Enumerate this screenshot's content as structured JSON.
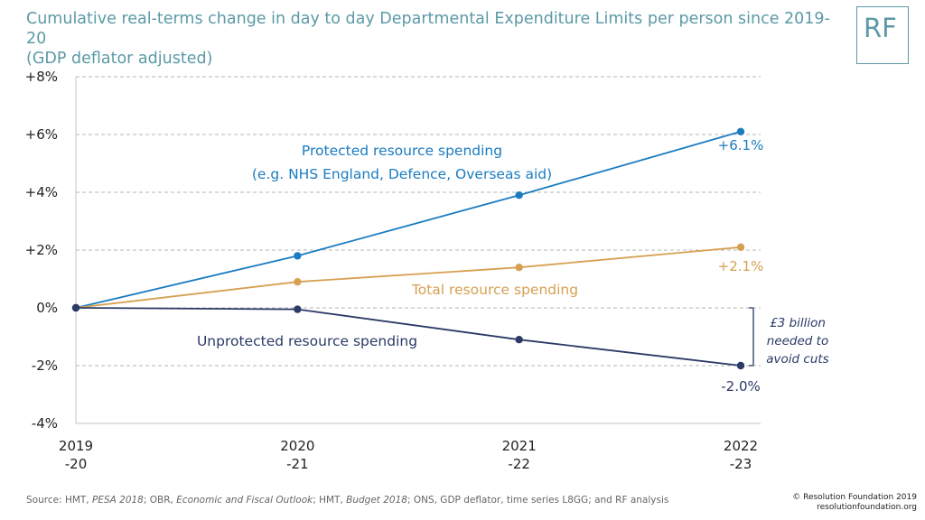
{
  "header": {
    "title_line1": "Cumulative real-terms change in day to day Departmental Expenditure Limits per person since 2019-20",
    "title_line2": "(GDP deflator adjusted)",
    "logo_text": "RF"
  },
  "footer": {
    "source_prefix": "Source: HMT, ",
    "source_pesa": "PESA 2018",
    "source_mid1": "; OBR, ",
    "source_efo": "Economic and Fiscal Outlook",
    "source_mid2": "; HMT, ",
    "source_budget": "Budget 2018",
    "source_suffix": "; ONS, GDP deflator, time series L8GG; and RF analysis",
    "copyright_line1": "© Resolution Foundation 2019",
    "copyright_line2": "resolutionfoundation.org"
  },
  "chart_data": {
    "type": "line",
    "x_tick_labels": [
      [
        "2019",
        "-20"
      ],
      [
        "2020",
        "-21"
      ],
      [
        "2021",
        "-22"
      ],
      [
        "2022",
        "-23"
      ]
    ],
    "y_tick_labels": [
      "+8%",
      "+6%",
      "+4%",
      "+2%",
      "0%",
      "-2%",
      "-4%"
    ],
    "ylim": [
      -4,
      8
    ],
    "y_ticks": [
      8,
      6,
      4,
      2,
      0,
      -2,
      -4
    ],
    "grid": true,
    "series": [
      {
        "label_lines": [
          "Protected resource spending",
          "(e.g. NHS England, Defence, Overseas aid)"
        ],
        "color": "#1b7cc1",
        "values": [
          0,
          1.8,
          3.9,
          6.1
        ],
        "end_label": "+6.1%"
      },
      {
        "label_lines": [
          "Total resource spending"
        ],
        "color": "#d6a052",
        "values": [
          0,
          0.9,
          1.4,
          2.1
        ],
        "end_label": "+2.1%"
      },
      {
        "label_lines": [
          "Unprotected resource spending"
        ],
        "color": "#2b3a66",
        "values": [
          0,
          -0.05,
          -1.1,
          -2.0
        ],
        "end_label": "-2.0%"
      }
    ],
    "annotation": {
      "lines": [
        "£3 billion",
        "needed to",
        "avoid cuts"
      ],
      "bracket_from": 0,
      "bracket_to": -2.0
    }
  }
}
